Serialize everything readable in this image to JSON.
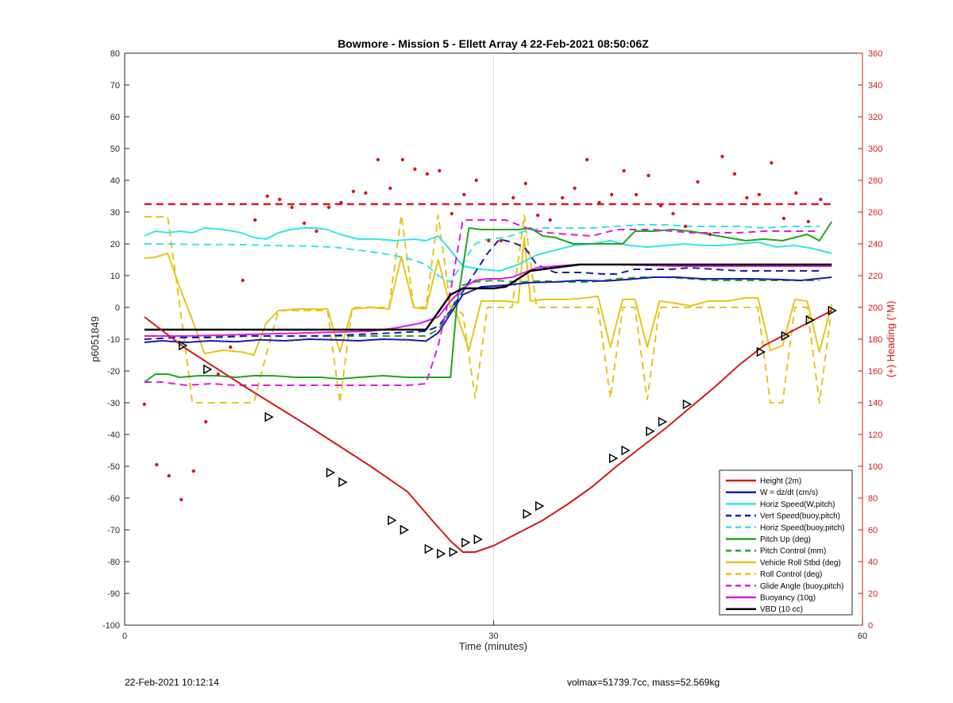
{
  "chart_data": {
    "type": "line",
    "title": "Bowmore - Mission 5 - Ellett Array 4 22-Feb-2021 08:50:06Z",
    "xlabel": "Time (minutes)",
    "ylabel": "p6051849",
    "y2label": "(+) Heading (°M)",
    "xlim": [
      0,
      60
    ],
    "ylim": [
      -100,
      80
    ],
    "y2lim": [
      0,
      360
    ],
    "xticks": [
      0,
      30,
      60
    ],
    "yticks": [
      -100,
      -90,
      -80,
      -70,
      -60,
      -50,
      -40,
      -30,
      -20,
      -10,
      0,
      10,
      20,
      30,
      40,
      50,
      60,
      70,
      80
    ],
    "y2ticks": [
      0,
      20,
      40,
      60,
      80,
      100,
      120,
      140,
      160,
      180,
      200,
      220,
      240,
      260,
      280,
      300,
      320,
      340,
      360
    ],
    "grid": "x=30 only",
    "legend_position": "bottom-right",
    "colors": {
      "red": "#d41a1a",
      "blue": "#1a1ab3",
      "cyan": "#33e5e5",
      "green": "#1fa61f",
      "yellow": "#e5c51a",
      "magenta": "#e01ae0",
      "black": "#000000"
    },
    "series": [
      {
        "name": "Height (2m)",
        "color": "#d41a1a",
        "style": "solid",
        "width": 2,
        "x": [
          1.6,
          5,
          10,
          15,
          20,
          23,
          25,
          26.5,
          27.5,
          28.5,
          30,
          32,
          34,
          36,
          38,
          40,
          42,
          44,
          46,
          48,
          50,
          52,
          54,
          56,
          57.5
        ],
        "y": [
          -3,
          -13,
          -25.5,
          -37.5,
          -50,
          -58,
          -67,
          -73.5,
          -77,
          -77,
          -75,
          -71,
          -67,
          -62,
          -56.5,
          -50,
          -44,
          -38,
          -31.5,
          -25,
          -18,
          -12,
          -8,
          -4,
          -1
        ]
      },
      {
        "name": "W = dz/dt (cm/s)",
        "color": "#1a1ab3",
        "style": "solid",
        "width": 2,
        "x": [
          1.6,
          3,
          5,
          7,
          9,
          11,
          13,
          15,
          17,
          19,
          21,
          23,
          24.5,
          25.5,
          26.5,
          27.5,
          29,
          31,
          33,
          35,
          37,
          39,
          41,
          43,
          45,
          47,
          49,
          51,
          53,
          55,
          57.5
        ],
        "y": [
          -11,
          -10.5,
          -11,
          -10.5,
          -10.8,
          -10.2,
          -10.5,
          -10,
          -10.2,
          -10.5,
          -10,
          -10.2,
          -10.6,
          -8,
          -2,
          4,
          6.5,
          7,
          7.8,
          8,
          8.5,
          8.3,
          8.8,
          9.5,
          9.5,
          9,
          9,
          9,
          8.8,
          8.5,
          9.5
        ]
      },
      {
        "name": "Horiz Speed(W,pitch)",
        "color": "#33e5e5",
        "style": "solid",
        "width": 2,
        "x": [
          1.6,
          2.5,
          3.5,
          4.5,
          5.5,
          6.5,
          8,
          9.5,
          10.5,
          11.5,
          12.5,
          13.5,
          14.5,
          15.5,
          16.5,
          17.5,
          19,
          20.5,
          22,
          23.5,
          24.5,
          25.5,
          26.5,
          27.5,
          29,
          30.5,
          32,
          33.5,
          35,
          36.5,
          38,
          39.5,
          41,
          42.5,
          44,
          45.5,
          47,
          48.5,
          50,
          51.5,
          53,
          54.5,
          56,
          57.5
        ],
        "y": [
          22.5,
          24,
          23.5,
          24,
          23.5,
          25,
          24.5,
          23.5,
          22,
          21.5,
          23.5,
          24.5,
          25,
          25,
          24.5,
          23,
          21.5,
          21.5,
          21,
          21.5,
          21,
          22.5,
          18,
          13,
          12,
          11.5,
          13.5,
          16.5,
          18,
          19.5,
          20,
          21,
          19.5,
          19,
          19.5,
          20,
          19.5,
          19.5,
          20,
          20.5,
          19,
          19.5,
          18.5,
          17
        ]
      },
      {
        "name": "Vert Speed(buoy,pitch)",
        "color": "#1a1ab3",
        "style": "dashed",
        "width": 2,
        "x": [
          1.6,
          4,
          7,
          10,
          13,
          16,
          19,
          22,
          24.5,
          25.5,
          26.5,
          27.5,
          28.5,
          29.5,
          30.5,
          31.5,
          32.5,
          33.5,
          35,
          37,
          39,
          40,
          41.5,
          43,
          44.5,
          46,
          48,
          50,
          52,
          54,
          56.5
        ],
        "y": [
          -10,
          -9.5,
          -9.5,
          -9,
          -9,
          -9,
          -8.5,
          -8,
          -7.5,
          -6,
          -1,
          5,
          11,
          17,
          21.5,
          20.5,
          19,
          13.5,
          11,
          11,
          10.5,
          10.5,
          12,
          12,
          12,
          12.5,
          12,
          11.5,
          11.5,
          11.5,
          11.5
        ]
      },
      {
        "name": "Horiz Speed(buoy,pitch)",
        "color": "#33e5e5",
        "style": "dashed",
        "width": 2,
        "x": [
          1.6,
          3,
          6,
          9,
          12,
          15,
          17,
          19,
          21,
          23,
          24.5,
          25.5,
          26.5,
          27.5,
          28.5,
          29.5,
          31,
          32.5,
          34,
          36,
          38,
          40,
          42,
          44,
          46,
          48,
          50,
          52,
          54,
          56.5
        ],
        "y": [
          20,
          20,
          19.8,
          19.8,
          19.5,
          19.3,
          19,
          18,
          17,
          15.5,
          13.5,
          10,
          8,
          14,
          20,
          21.5,
          22,
          24,
          25,
          25,
          25,
          25.5,
          26,
          26,
          25.5,
          25.5,
          25.5,
          25,
          25.5,
          25.5
        ]
      },
      {
        "name": "Pitch Up (deg)",
        "color": "#1fa61f",
        "style": "solid",
        "width": 2,
        "x": [
          1.6,
          2.5,
          3.5,
          4.5,
          6,
          7.5,
          9,
          10.5,
          12,
          14,
          16,
          17.5,
          19,
          21,
          23,
          24.5,
          25.5,
          26.5,
          27,
          28,
          29,
          30,
          31,
          32,
          33,
          34,
          35,
          36.5,
          38,
          39.5,
          40.5,
          41.5,
          43,
          44.5,
          46,
          47.5,
          49,
          50.5,
          52,
          53.5,
          54.5,
          55.5,
          56.5,
          57.5
        ],
        "y": [
          -23.5,
          -21,
          -21,
          -22,
          -21.5,
          -21.5,
          -22,
          -21.5,
          -21.5,
          -22,
          -22,
          -22.5,
          -22,
          -21.5,
          -22,
          -22,
          -22,
          -22,
          0,
          25,
          24.5,
          24.5,
          24.5,
          24.5,
          25,
          22.5,
          22,
          20,
          20,
          20,
          20,
          24,
          24,
          24.5,
          24,
          23,
          22,
          21,
          21.5,
          21,
          22,
          23,
          21,
          27
        ]
      },
      {
        "name": "Pitch Control (mm)",
        "color": "#1fa61f",
        "style": "dashed",
        "width": 2,
        "x": [
          1.6,
          6,
          10,
          14,
          18,
          22,
          24.5,
          25.5,
          26.5,
          27.5,
          28.5,
          30,
          32,
          34,
          36,
          38,
          40,
          42,
          44,
          46,
          48,
          50,
          52,
          54,
          56.5
        ],
        "y": [
          -9,
          -9,
          -9,
          -9,
          -9,
          -9,
          -9,
          -7,
          -1,
          7,
          8,
          8.5,
          8,
          8.3,
          8,
          8,
          9,
          9.5,
          9.5,
          9,
          8.5,
          8.5,
          8.5,
          8.5,
          8.5
        ]
      },
      {
        "name": "Vehicle Roll Stbd (deg)",
        "color": "#e5c51a",
        "style": "solid",
        "width": 2,
        "x": [
          1.6,
          2.5,
          3.5,
          4.5,
          5.5,
          6.5,
          8,
          9.5,
          10.5,
          11.5,
          12.5,
          14,
          15.5,
          16.5,
          17.5,
          18.5,
          20,
          21.5,
          22.5,
          23.5,
          24.5,
          25.5,
          26.5,
          27,
          28,
          29,
          30,
          31,
          32,
          32.5,
          33,
          34,
          36,
          37.5,
          38.5,
          39.5,
          40.5,
          41.5,
          42.5,
          43.5,
          44.5,
          46,
          47.5,
          49,
          50.5,
          51.5,
          52.5,
          53.5,
          54.5,
          55.5,
          56.5,
          57.5
        ],
        "y": [
          15.5,
          15.8,
          17,
          6,
          -4,
          -14.5,
          -13.5,
          -14,
          -15,
          -5,
          -1,
          -0.5,
          -0.5,
          -0.5,
          -14,
          -0.5,
          0,
          -0.5,
          16,
          0,
          -0.5,
          15,
          0,
          -2,
          -13.5,
          2,
          2,
          2,
          1.5,
          22,
          2,
          2.5,
          2.5,
          3,
          3.5,
          -12.5,
          2.5,
          2.5,
          -12.5,
          2,
          1.5,
          0.5,
          2,
          2,
          3,
          3,
          -13.5,
          -12,
          2.5,
          2,
          -14,
          1
        ]
      },
      {
        "name": "Roll Control (deg)",
        "color": "#e5c51a",
        "style": "dashed",
        "width": 2,
        "x": [
          1.6,
          2.5,
          3.5,
          4.5,
          5.5,
          6.5,
          8,
          10.5,
          11.5,
          12.5,
          13.5,
          15.5,
          16.5,
          17.5,
          18.5,
          20,
          21.5,
          22.5,
          23.5,
          24.5,
          25.5,
          26.5,
          27.5,
          28.5,
          29.5,
          30.5,
          31.5,
          32.5,
          33.5,
          35,
          37,
          38.5,
          39.5,
          40.5,
          41.5,
          42.5,
          43.5,
          45,
          47,
          49,
          51.5,
          52.5,
          53.5,
          54.5,
          55.5,
          56.5,
          57.5
        ],
        "y": [
          28.5,
          28.5,
          28.5,
          0,
          -30,
          -30,
          -30,
          -30,
          -15,
          -1,
          -1,
          -1,
          -1,
          -30,
          0,
          0,
          0,
          29,
          0,
          0,
          29,
          0,
          -2,
          -28.5,
          0,
          0,
          0,
          29,
          0,
          0,
          0,
          0,
          -28.5,
          0,
          0,
          -29,
          0,
          0,
          0,
          0,
          0,
          -30,
          -30,
          0,
          0,
          -30,
          0
        ]
      },
      {
        "name": "Glide Angle (buoy,pitch)",
        "color": "#e01ae0",
        "style": "dashed",
        "width": 2,
        "x": [
          1.6,
          3,
          5,
          7,
          9,
          11,
          13,
          15,
          17,
          19,
          21,
          23,
          24.5,
          25.5,
          26.5,
          27.5,
          28.5,
          29.5,
          31,
          32,
          33,
          34.5,
          36,
          38,
          40,
          41.5,
          43,
          44.5,
          46,
          48,
          50,
          52,
          54,
          56.5
        ],
        "y": [
          -23.5,
          -23.5,
          -24.5,
          -24,
          -24.5,
          -24.5,
          -24.5,
          -24.5,
          -24.5,
          -24.5,
          -24.5,
          -24.5,
          -24,
          -12,
          5,
          27.5,
          27.5,
          27.5,
          27.5,
          26,
          24.5,
          23.5,
          23,
          22.5,
          24.5,
          24.5,
          24.5,
          24,
          23.5,
          23.5,
          23.5,
          24,
          24,
          24
        ]
      },
      {
        "name": "Buoyancy (10g)",
        "color": "#e01ae0",
        "style": "solid",
        "width": 2,
        "x": [
          1.6,
          5,
          10,
          15,
          20,
          22,
          24,
          25.5,
          26.5,
          27.5,
          28.5,
          29.5,
          30.5,
          31.5,
          32.5,
          33.5,
          35,
          37,
          40,
          45,
          50,
          55,
          57.5
        ],
        "y": [
          -9,
          -9,
          -8.5,
          -8,
          -7.5,
          -6.5,
          -5,
          -3,
          2,
          6,
          8.5,
          9,
          9,
          9.5,
          11,
          12.5,
          13,
          13.5,
          13.5,
          13,
          13,
          13,
          13
        ]
      },
      {
        "name": "VBD (10 cc)",
        "color": "#000000",
        "style": "solid",
        "width": 2.5,
        "x": [
          1.6,
          5,
          10,
          15,
          20,
          24.5,
          25.5,
          26.5,
          27.5,
          28.5,
          30,
          31,
          32,
          33,
          34,
          35,
          37,
          40,
          45,
          50,
          55,
          57.5
        ],
        "y": [
          -7,
          -7,
          -7,
          -7,
          -7,
          -7,
          -1.5,
          4,
          6,
          6,
          6,
          6.5,
          9,
          11.5,
          12,
          12.5,
          13.5,
          13.5,
          13.5,
          13.5,
          13.5,
          13.5
        ]
      }
    ],
    "heading_mean_line": {
      "color": "#d41a1a",
      "style": "dashed",
      "x": [
        1.6,
        57.5
      ],
      "heading": [
        265,
        265
      ]
    },
    "heading_points": {
      "color": "#d41a1a",
      "x": [
        1.6,
        2.6,
        3.6,
        4.6,
        5.6,
        6.6,
        7.6,
        8.6,
        9.6,
        10.6,
        11.6,
        12.6,
        13.6,
        14.6,
        15.6,
        16.6,
        17.6,
        18.6,
        19.6,
        20.6,
        21.6,
        22.6,
        23.6,
        24.6,
        25.6,
        26.6,
        27.6,
        28.6,
        29.6,
        30.6,
        31.6,
        32.6,
        33.6,
        34.6,
        35.6,
        36.6,
        37.6,
        38.6,
        39.6,
        40.6,
        41.6,
        42.6,
        43.6,
        44.6,
        45.6,
        46.6,
        47.6,
        48.6,
        49.6,
        50.6,
        51.6,
        52.6,
        53.6,
        54.6,
        55.6,
        56.6
      ],
      "heading": [
        139,
        101,
        94,
        79,
        97,
        128,
        158,
        175,
        217,
        255,
        270,
        268,
        263,
        253,
        248,
        263,
        266,
        273,
        272,
        293,
        275,
        293,
        287,
        284,
        286,
        259,
        271,
        280,
        242,
        242,
        269,
        278,
        258,
        255,
        269,
        275,
        293,
        266,
        271,
        286,
        271,
        283,
        264,
        259,
        251,
        279,
        246,
        295,
        284,
        269,
        271,
        291,
        256,
        272,
        254,
        268
      ]
    },
    "markers": {
      "symbol": "triangle-right",
      "x": [
        4.7,
        6.7,
        11.7,
        16.7,
        17.7,
        21.7,
        22.7,
        24.7,
        25.7,
        26.7,
        27.7,
        28.7,
        32.7,
        33.7,
        39.7,
        40.7,
        42.7,
        43.7,
        45.7,
        51.7,
        53.7,
        55.7,
        57.5
      ],
      "y": [
        -12,
        -19.5,
        -34.5,
        -52,
        -55,
        -67,
        -70,
        -76,
        -77.5,
        -77,
        -74,
        -73,
        -65,
        -62.5,
        -47.5,
        -45,
        -39,
        -36,
        -30.5,
        -14,
        -9,
        -4,
        -1
      ]
    }
  },
  "footer": {
    "left": "22-Feb-2021 10:12:14",
    "right": "volmax=51739.7cc, mass=52.569kg"
  }
}
